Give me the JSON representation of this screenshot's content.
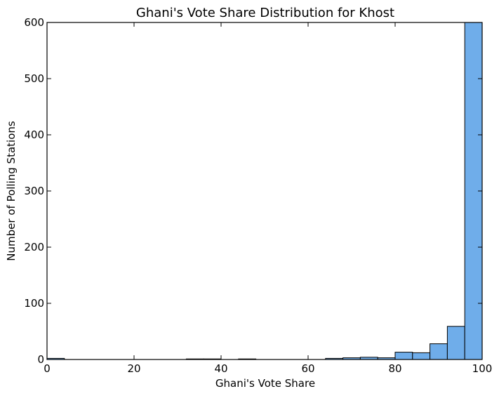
{
  "chart_data": {
    "type": "bar",
    "title": "Ghani's Vote Share Distribution for Khost",
    "xlabel": "Ghani's Vote Share",
    "ylabel": "Number of Polling Stations",
    "xlim": [
      0,
      100
    ],
    "ylim": [
      0,
      600
    ],
    "xticks": [
      0,
      20,
      40,
      60,
      80,
      100
    ],
    "yticks": [
      0,
      100,
      200,
      300,
      400,
      500,
      600
    ],
    "bin_width": 4,
    "bins": [
      {
        "start": 0,
        "end": 4,
        "count": 2
      },
      {
        "start": 4,
        "end": 8,
        "count": 0
      },
      {
        "start": 8,
        "end": 12,
        "count": 0
      },
      {
        "start": 12,
        "end": 16,
        "count": 0
      },
      {
        "start": 16,
        "end": 20,
        "count": 0
      },
      {
        "start": 20,
        "end": 24,
        "count": 0
      },
      {
        "start": 24,
        "end": 28,
        "count": 0
      },
      {
        "start": 28,
        "end": 32,
        "count": 0
      },
      {
        "start": 32,
        "end": 36,
        "count": 1
      },
      {
        "start": 36,
        "end": 40,
        "count": 1
      },
      {
        "start": 40,
        "end": 44,
        "count": 0
      },
      {
        "start": 44,
        "end": 48,
        "count": 1
      },
      {
        "start": 48,
        "end": 52,
        "count": 0
      },
      {
        "start": 52,
        "end": 56,
        "count": 0
      },
      {
        "start": 56,
        "end": 60,
        "count": 0
      },
      {
        "start": 60,
        "end": 64,
        "count": 0
      },
      {
        "start": 64,
        "end": 68,
        "count": 2
      },
      {
        "start": 68,
        "end": 72,
        "count": 3
      },
      {
        "start": 72,
        "end": 76,
        "count": 4
      },
      {
        "start": 76,
        "end": 80,
        "count": 3
      },
      {
        "start": 80,
        "end": 84,
        "count": 13
      },
      {
        "start": 84,
        "end": 88,
        "count": 12
      },
      {
        "start": 88,
        "end": 92,
        "count": 28
      },
      {
        "start": 92,
        "end": 96,
        "count": 59
      },
      {
        "start": 96,
        "end": 100,
        "count": 600
      }
    ],
    "bar_color": "#6fadea",
    "edge_color": "#000000"
  }
}
